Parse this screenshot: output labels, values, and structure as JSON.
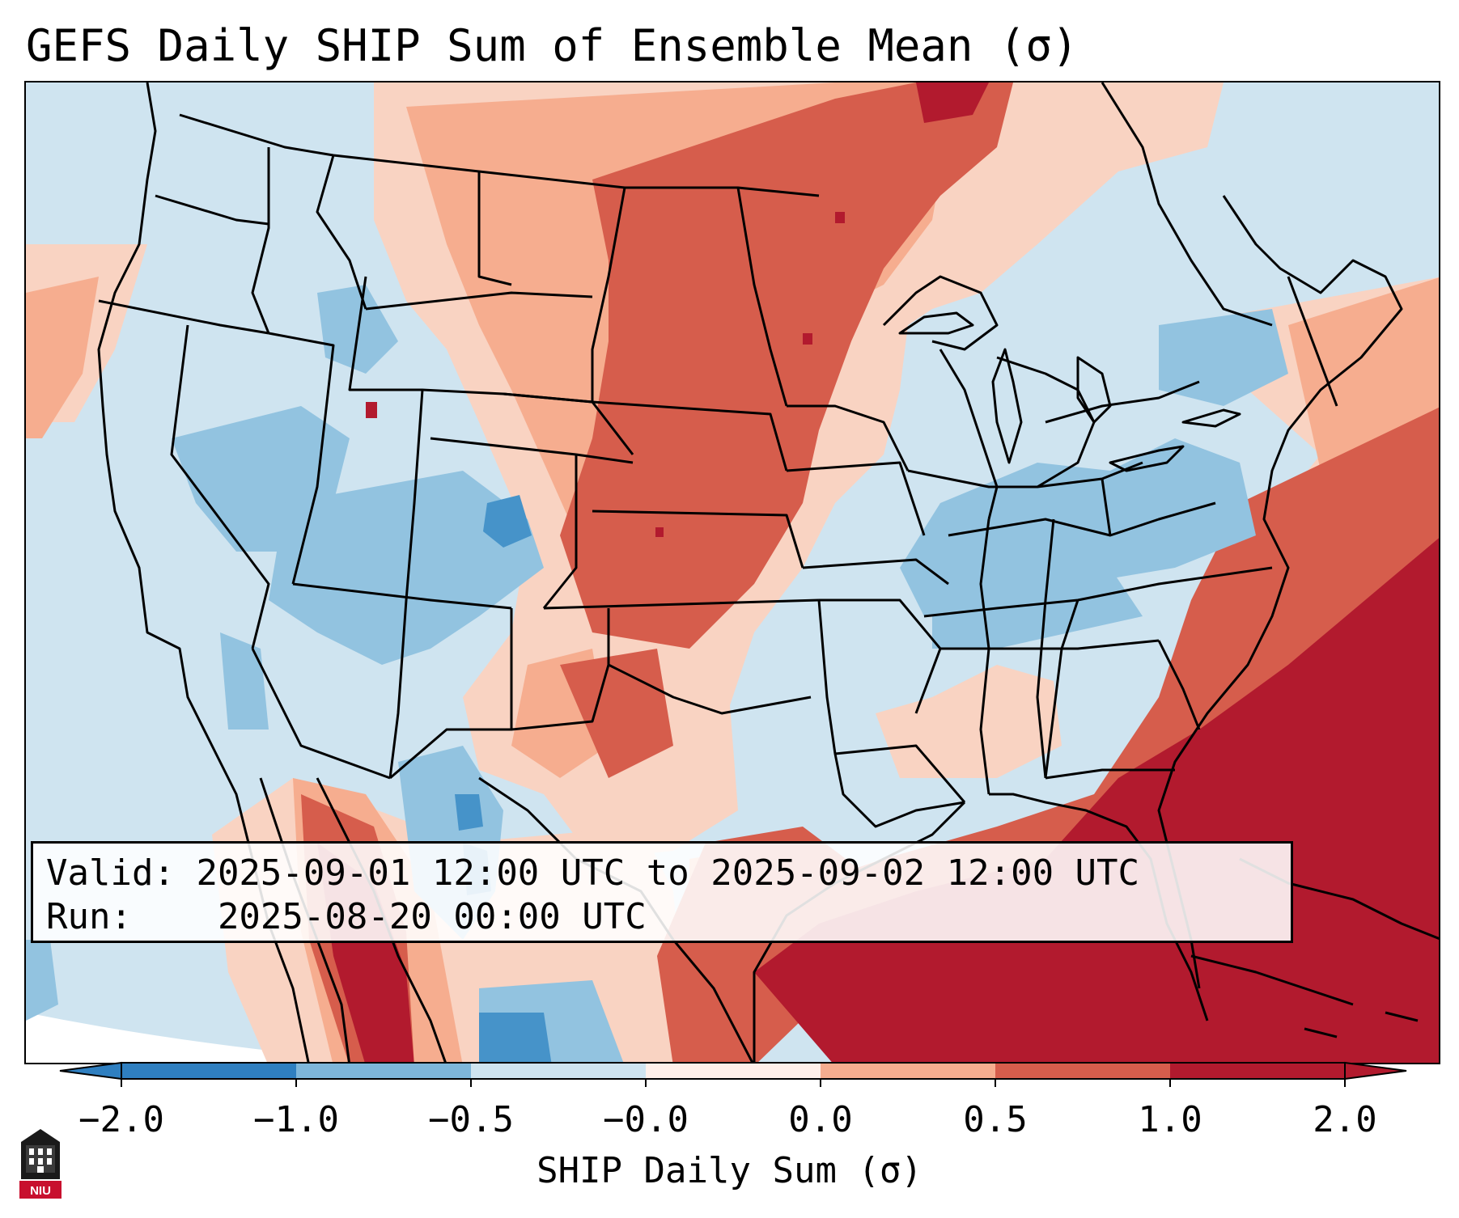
{
  "title": "GEFS Daily SHIP Sum of Ensemble Mean (σ)",
  "info_box": {
    "valid_label": "Valid:",
    "valid_value": "2025-09-01 12:00 UTC to 2025-09-02 12:00 UTC",
    "run_label": "Run:",
    "run_value": "2025-08-20 00:00 UTC"
  },
  "colorbar": {
    "label": "SHIP Daily Sum (σ)",
    "tick_labels": [
      "−2.0",
      "−1.0",
      "−0.5",
      "−0.0",
      "0.0",
      "0.5",
      "1.0",
      "2.0"
    ],
    "colors": [
      "#2f7fc0",
      "#7eb6da",
      "#cfe4f0",
      "#fff0ea",
      "#f6ad8f",
      "#d65d4c",
      "#b21a2e"
    ],
    "extend": "both"
  },
  "logo": {
    "text": "NIU"
  }
}
